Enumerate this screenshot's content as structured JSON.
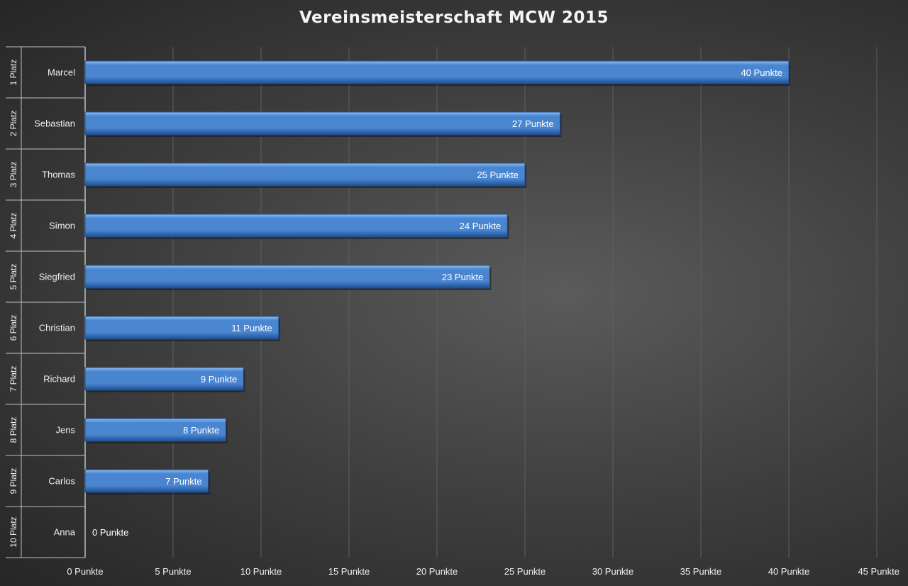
{
  "colors": {
    "bar": "#4a86d0",
    "bar_light": "#8fbdf2",
    "bar_dark": "#1d4f93",
    "grid": "#5e5e5e",
    "axis_line": "#bfbfbf",
    "text": "#f0f0f0"
  },
  "chart_data": {
    "type": "bar",
    "orientation": "horizontal",
    "title": "Vereinsmeisterschaft MCW 2015",
    "xlabel": "",
    "ylabel": "",
    "xlim": [
      0,
      45
    ],
    "x_ticks": [
      0,
      5,
      10,
      15,
      20,
      25,
      30,
      35,
      40,
      45
    ],
    "x_tick_labels": [
      "0 Punkte",
      "5 Punkte",
      "10 Punkte",
      "15 Punkte",
      "20 Punkte",
      "25 Punkte",
      "30 Punkte",
      "35 Punkte",
      "40 Punkte",
      "45 Punkte"
    ],
    "grid": true,
    "legend": "none",
    "ranks": [
      "1 Platz",
      "2 Platz",
      "3 Platz",
      "4 Platz",
      "5 Platz",
      "6 Platz",
      "7 Platz",
      "8 Platz",
      "9 Platz",
      "10 Platz"
    ],
    "categories": [
      "Marcel",
      "Sebastian",
      "Thomas",
      "Simon",
      "Siegfried",
      "Christian",
      "Richard",
      "Jens",
      "Carlos",
      "Anna"
    ],
    "values": [
      40,
      27,
      25,
      24,
      23,
      11,
      9,
      8,
      7,
      0
    ],
    "data_labels": [
      "40 Punkte",
      "27 Punkte",
      "25 Punkte",
      "24 Punkte",
      "23 Punkte",
      "11 Punkte",
      "9 Punkte",
      "8 Punkte",
      "7 Punkte",
      "0 Punkte"
    ]
  }
}
